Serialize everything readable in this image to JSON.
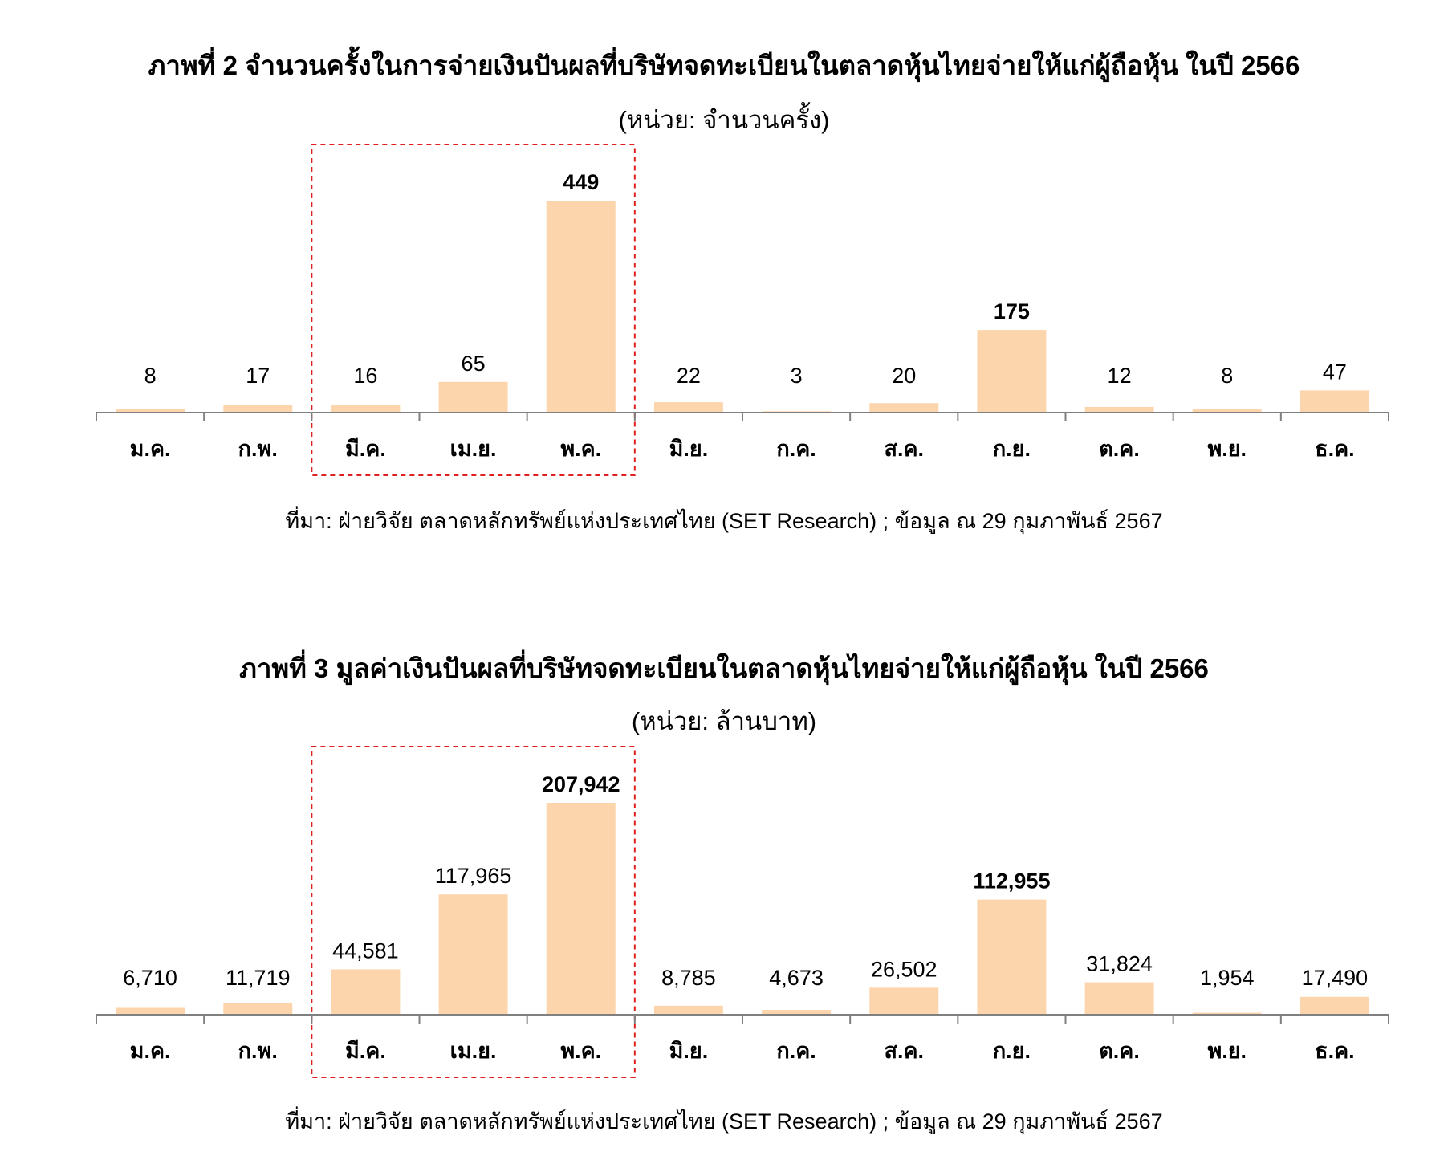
{
  "colors": {
    "bar": "#FDD5AD",
    "axis": "#808080",
    "highlight_box": "#E02020",
    "text": "#000000"
  },
  "charts": [
    {
      "title": "ภาพที่ 2 จำนวนครั้งในการจ่ายเงินปันผลที่บริษัทจดทะเบียนในตลาดหุ้นไทยจ่ายให้แก่ผู้ถือหุ้น ในปี 2566",
      "subtitle": "(หน่วย:  จำนวนครั้ง)",
      "source": "ที่มา: ฝ่ายวิจัย ตลาดหลักทรัพย์แห่งประเทศไทย (SET Research) ; ข้อมูล ณ 29 กุมภาพันธ์ 2567"
    },
    {
      "title": "ภาพที่ 3 มูลค่าเงินปันผลที่บริษัทจดทะเบียนในตลาดหุ้นไทยจ่ายให้แก่ผู้ถือหุ้น ในปี 2566",
      "subtitle": "(หน่วย:  ล้านบาท)",
      "source": "ที่มา: ฝ่ายวิจัย ตลาดหลักทรัพย์แห่งประเทศไทย (SET Research) ; ข้อมูล ณ 29 กุมภาพันธ์ 2567"
    }
  ],
  "chart_data": [
    {
      "type": "bar",
      "title": "ภาพที่ 2 จำนวนครั้งในการจ่ายเงินปันผลที่บริษัทจดทะเบียนในตลาดหุ้นไทยจ่ายให้แก่ผู้ถือหุ้น ในปี 2566",
      "subtitle": "(หน่วย:  จำนวนครั้ง)",
      "categories": [
        "ม.ค.",
        "ก.พ.",
        "มี.ค.",
        "เม.ย.",
        "พ.ค.",
        "มิ.ย.",
        "ก.ค.",
        "ส.ค.",
        "ก.ย.",
        "ต.ค.",
        "พ.ย.",
        "ธ.ค."
      ],
      "values": [
        8,
        17,
        16,
        65,
        449,
        22,
        3,
        20,
        175,
        12,
        8,
        47
      ],
      "labels": [
        "8",
        "17",
        "16",
        "65",
        "449",
        "22",
        "3",
        "20",
        "175",
        "12",
        "8",
        "47"
      ],
      "bold_labels": [
        "พ.ค.",
        "ก.ย."
      ],
      "highlight_categories": [
        "มี.ค.",
        "เม.ย.",
        "พ.ค."
      ],
      "grid": false,
      "legend": "none"
    },
    {
      "type": "bar",
      "title": "ภาพที่ 3 มูลค่าเงินปันผลที่บริษัทจดทะเบียนในตลาดหุ้นไทยจ่ายให้แก่ผู้ถือหุ้น ในปี 2566",
      "subtitle": "(หน่วย:  ล้านบาท)",
      "categories": [
        "ม.ค.",
        "ก.พ.",
        "มี.ค.",
        "เม.ย.",
        "พ.ค.",
        "มิ.ย.",
        "ก.ค.",
        "ส.ค.",
        "ก.ย.",
        "ต.ค.",
        "พ.ย.",
        "ธ.ค."
      ],
      "values": [
        6710,
        11719,
        44581,
        117965,
        207942,
        8785,
        4673,
        26502,
        112955,
        31824,
        1954,
        17490
      ],
      "labels": [
        "6,710",
        "11,719",
        "44,581",
        "117,965",
        "207,942",
        "8,785",
        "4,673",
        "26,502",
        "112,955",
        "31,824",
        "1,954",
        "17,490"
      ],
      "bold_labels": [
        "พ.ค.",
        "ก.ย."
      ],
      "highlight_categories": [
        "มี.ค.",
        "เม.ย.",
        "พ.ค."
      ],
      "grid": false,
      "legend": "none"
    }
  ]
}
